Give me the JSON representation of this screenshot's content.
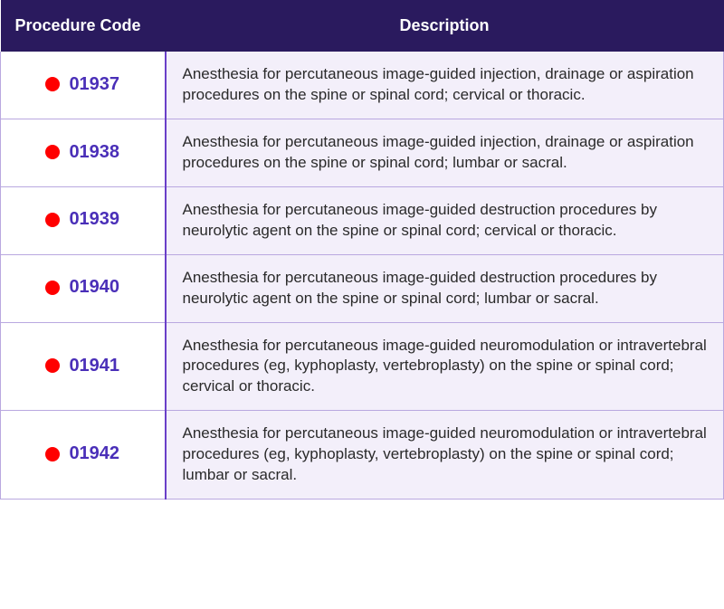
{
  "table": {
    "columns": [
      "Procedure Code",
      "Description"
    ],
    "header_bg": "#2a1a5e",
    "header_text_color": "#ffffff",
    "code_text_color": "#4a2fb8",
    "desc_bg": "#f3effa",
    "border_color": "#b9a8e0",
    "divider_color": "#6a3fc8",
    "dot_color": "#ff0000",
    "rows": [
      {
        "code": "01937",
        "description": "Anesthesia for percutaneous image-guided injection, drainage or aspiration procedures on the spine or spinal cord; cervical or thoracic."
      },
      {
        "code": "01938",
        "description": "Anesthesia for percutaneous image-guided injection, drainage or aspiration procedures on the spine or spinal cord; lumbar or sacral."
      },
      {
        "code": "01939",
        "description": "Anesthesia for percutaneous image-guided destruction procedures by neurolytic agent on the spine or spinal cord; cervical or thoracic."
      },
      {
        "code": "01940",
        "description": "Anesthesia for percutaneous image-guided destruction procedures by neurolytic agent on the spine or spinal cord; lumbar or sacral."
      },
      {
        "code": "01941",
        "description": "Anesthesia for percutaneous image-guided neuromodulation or intravertebral procedures (eg, kyphoplasty, vertebroplasty) on the spine or spinal cord; cervical or thoracic."
      },
      {
        "code": "01942",
        "description": "Anesthesia for percutaneous image-guided neuromodulation or intravertebral procedures (eg, kyphoplasty, vertebroplasty) on the spine or spinal cord; lumbar or sacral."
      }
    ]
  }
}
